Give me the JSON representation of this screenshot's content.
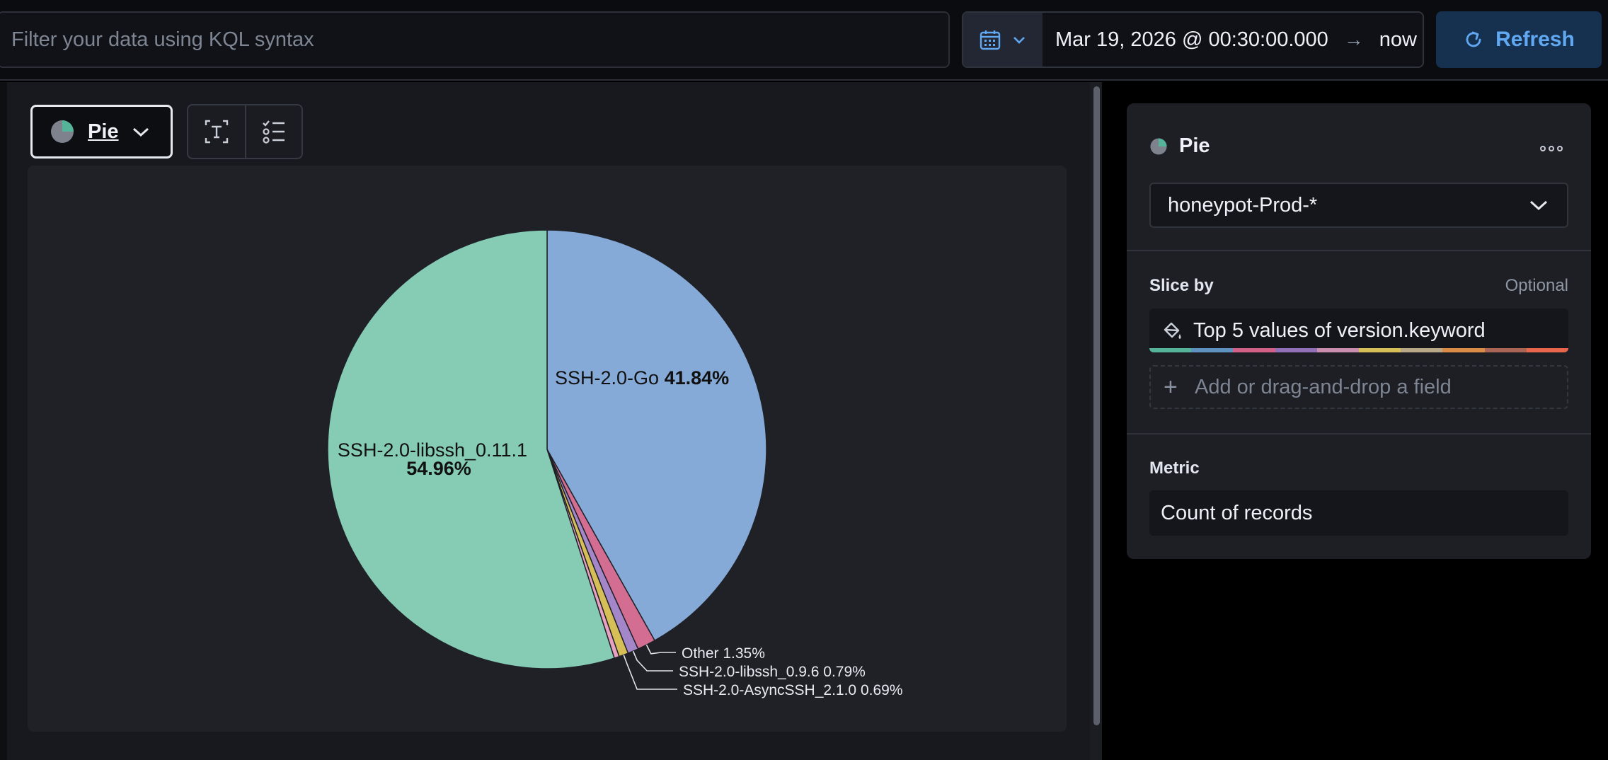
{
  "query_bar": {
    "placeholder": "Filter your data using KQL syntax",
    "date_start": "Mar 19, 2026 @ 00:30:00.000",
    "arrow": "→",
    "date_end": "now",
    "refresh_label": "Refresh"
  },
  "toolbar": {
    "chart_type_label": "Pie",
    "icons": [
      "pie-chart-icon",
      "chevron-down-icon",
      "text-labels-icon",
      "legend-icon"
    ]
  },
  "chart_data": {
    "type": "pie",
    "slices": [
      {
        "label": "SSH-2.0-Go",
        "value": 41.84,
        "display": "41.84%",
        "color": "#85aad8"
      },
      {
        "label": "Other",
        "value": 1.35,
        "display": "1.35%",
        "color": "#d36e92"
      },
      {
        "label": "SSH-2.0-libssh_0.9.6",
        "value": 0.79,
        "display": "0.79%",
        "color": "#a387c9"
      },
      {
        "label": "SSH-2.0-AsyncSSH_2.1.0",
        "value": 0.69,
        "display": "0.69%",
        "color": "#d6bf57"
      },
      {
        "label": "",
        "value": 0.37,
        "display": "",
        "color": "#e7a1c1"
      },
      {
        "label": "SSH-2.0-libssh_0.11.1",
        "value": 54.96,
        "display": "54.96%",
        "color": "#86cbb4"
      }
    ]
  },
  "config_panel": {
    "title": "Pie",
    "data_view": "honeypot-Prod-*",
    "slice_by_label": "Slice by",
    "optional_label": "Optional",
    "slice_by_value": "Top 5 values of version.keyword",
    "add_field_label": "Add or drag-and-drop a field",
    "metric_label": "Metric",
    "metric_value": "Count of records",
    "palette": [
      "#54b399",
      "#6092c0",
      "#d36086",
      "#9170b8",
      "#ca8eae",
      "#d6bf57",
      "#b9a888",
      "#da8b45",
      "#aa6556",
      "#e7664c"
    ]
  },
  "colors": {
    "accent": "#61a8f3",
    "refresh_bg": "#16314f"
  }
}
